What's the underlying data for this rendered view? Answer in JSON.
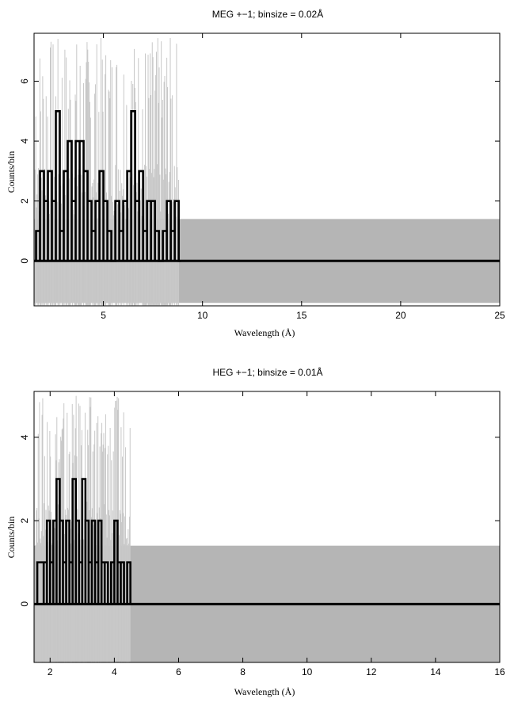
{
  "chart_data": [
    {
      "type": "line",
      "title": "MEG +−1; binsize = 0.02Å",
      "xlabel": "Wavelength (Å)",
      "ylabel": "Counts/bin",
      "xlim": [
        1.5,
        25
      ],
      "ylim": [
        -1.5,
        7.6
      ],
      "xticks": [
        5,
        10,
        15,
        20,
        25
      ],
      "yticks": [
        0,
        2,
        4,
        6
      ],
      "series": [
        {
          "role": "counts (black histogram)",
          "x": [
            1.6,
            1.8,
            2.0,
            2.2,
            2.4,
            2.6,
            2.8,
            3.0,
            3.2,
            3.4,
            3.6,
            3.8,
            4.0,
            4.2,
            4.4,
            4.6,
            4.8,
            5.0,
            5.2,
            5.4,
            5.6,
            5.8,
            6.0,
            6.2,
            6.4,
            6.6,
            6.8,
            7.0,
            7.2,
            7.4,
            7.6,
            7.8,
            8.0,
            8.2,
            8.4,
            8.6,
            8.8
          ],
          "values": [
            1,
            3,
            2,
            3,
            2,
            5,
            1,
            3,
            4,
            2,
            4,
            4,
            3,
            2,
            1,
            2,
            3,
            2,
            1,
            0,
            2,
            1,
            2,
            3,
            5,
            2,
            3,
            1,
            2,
            2,
            1,
            0,
            1,
            2,
            1,
            2,
            0
          ]
        },
        {
          "role": "error range (grey)",
          "upper_in_data_range": 1.4,
          "lower_in_data_range": -1.4,
          "spike_max": 7.5,
          "data_range_end": 8.8,
          "upper_beyond": 1.4,
          "lower_beyond": -1.4
        }
      ],
      "zero_line": 0,
      "grid": false
    },
    {
      "type": "line",
      "title": "HEG +−1; binsize = 0.01Å",
      "xlabel": "Wavelength (Å)",
      "ylabel": "Counts/bin",
      "xlim": [
        1.5,
        16
      ],
      "ylim": [
        -1.4,
        5.1
      ],
      "xticks": [
        2,
        4,
        6,
        8,
        10,
        12,
        14,
        16
      ],
      "yticks": [
        0,
        2,
        4
      ],
      "series": [
        {
          "role": "counts (black histogram)",
          "x": [
            1.6,
            1.8,
            1.9,
            2.0,
            2.1,
            2.2,
            2.3,
            2.4,
            2.5,
            2.6,
            2.7,
            2.8,
            2.9,
            3.0,
            3.1,
            3.2,
            3.3,
            3.4,
            3.5,
            3.6,
            3.7,
            3.8,
            3.9,
            4.0,
            4.1,
            4.2,
            4.3,
            4.4,
            4.5
          ],
          "values": [
            1,
            1,
            2,
            1,
            2,
            3,
            2,
            1,
            2,
            1,
            3,
            2,
            1,
            3,
            2,
            1,
            2,
            1,
            2,
            1,
            1,
            0,
            1,
            2,
            1,
            1,
            0,
            1,
            0
          ]
        },
        {
          "role": "error range (grey)",
          "upper_in_data_range": 1.4,
          "lower_in_data_range": -1.4,
          "spike_max": 5.0,
          "data_range_end": 4.5,
          "upper_beyond": 1.4,
          "lower_beyond": -1.4
        }
      ],
      "zero_line": 0,
      "grid": false
    }
  ]
}
